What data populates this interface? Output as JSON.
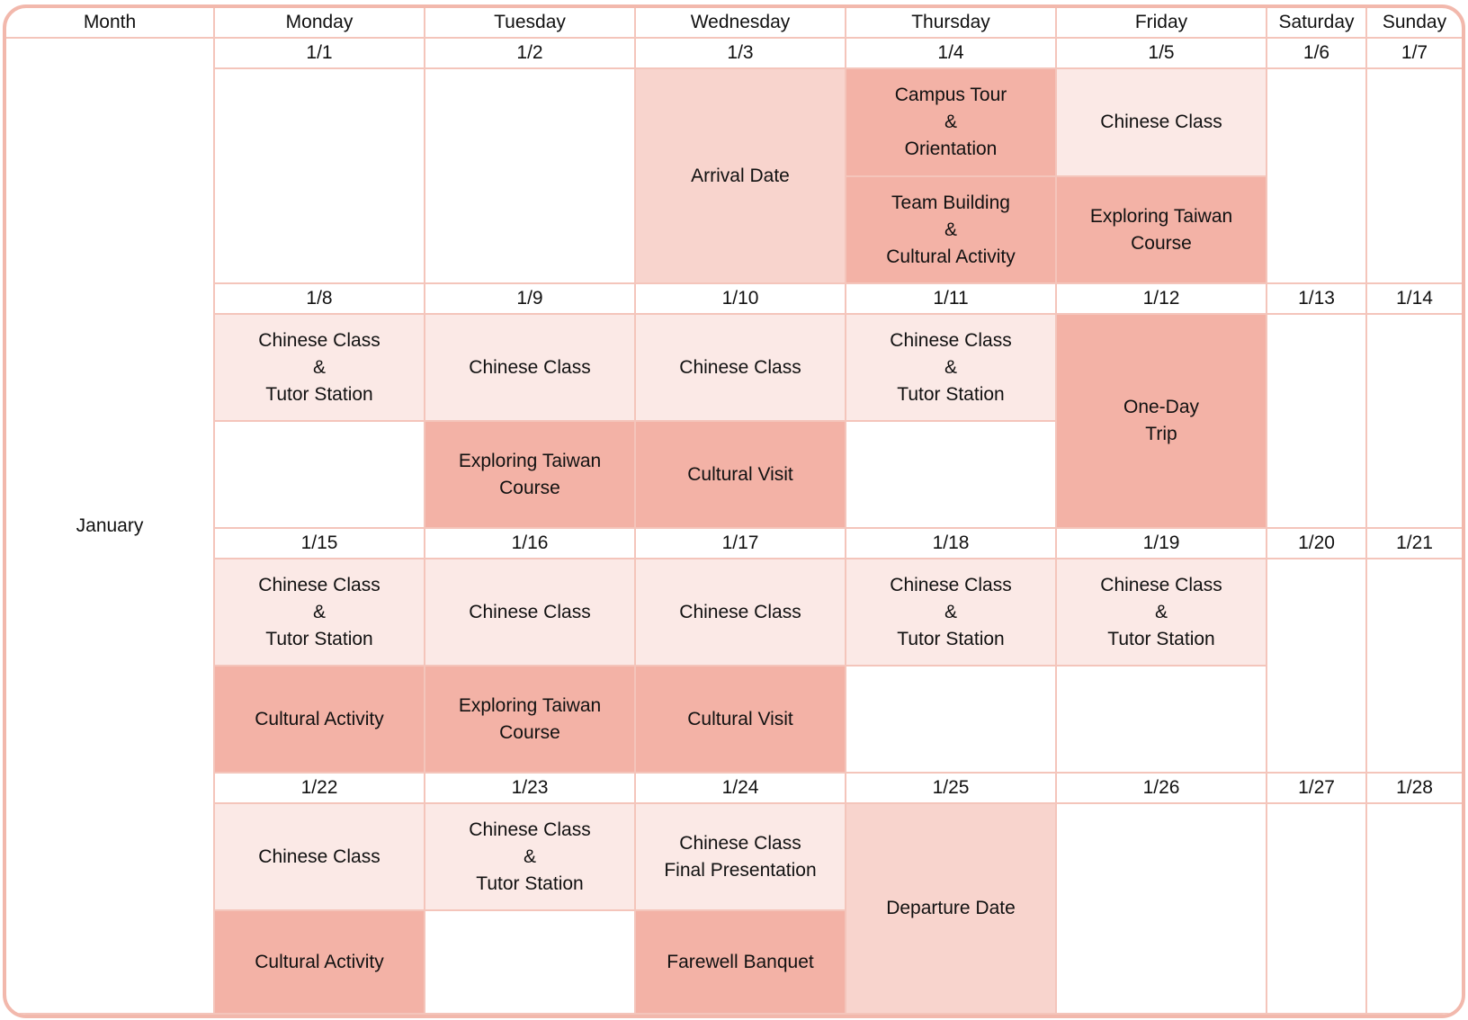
{
  "headers": {
    "month": "Month",
    "monday": "Monday",
    "tuesday": "Tuesday",
    "wednesday": "Wednesday",
    "thursday": "Thursday",
    "friday": "Friday",
    "saturday": "Saturday",
    "sunday": "Sunday"
  },
  "month_name": "January",
  "weeks": [
    {
      "dates": [
        "1/1",
        "1/2",
        "1/3",
        "1/4",
        "1/5",
        "1/6",
        "1/7"
      ]
    },
    {
      "dates": [
        "1/8",
        "1/9",
        "1/10",
        "1/11",
        "1/12",
        "1/13",
        "1/14"
      ]
    },
    {
      "dates": [
        "1/15",
        "1/16",
        "1/17",
        "1/18",
        "1/19",
        "1/20",
        "1/21"
      ]
    },
    {
      "dates": [
        "1/22",
        "1/23",
        "1/24",
        "1/25",
        "1/26",
        "1/27",
        "1/28"
      ]
    }
  ],
  "events": {
    "arrival_date": "Arrival Date",
    "campus_tour": [
      "Campus Tour",
      "&",
      "Orientation"
    ],
    "team_building": [
      "Team Building",
      "&",
      "Cultural Activity"
    ],
    "chinese_class": "Chinese Class",
    "exploring_taiwan": [
      "Exploring Taiwan",
      "Course"
    ],
    "chinese_tutor": [
      "Chinese Class",
      "&",
      "Tutor Station"
    ],
    "one_day_trip": [
      "One-Day",
      "Trip"
    ],
    "cultural_visit": "Cultural Visit",
    "cultural_activity": "Cultural Activity",
    "chinese_final": [
      "Chinese Class",
      "Final Presentation"
    ],
    "farewell_banquet": "Farewell Banquet",
    "departure_date": "Departure Date"
  },
  "colors": {
    "border": "#f2b8ac",
    "light_fill": "#fbe9e6",
    "mid_fill": "#f8d4cd",
    "dark_fill": "#f3b2a6"
  }
}
